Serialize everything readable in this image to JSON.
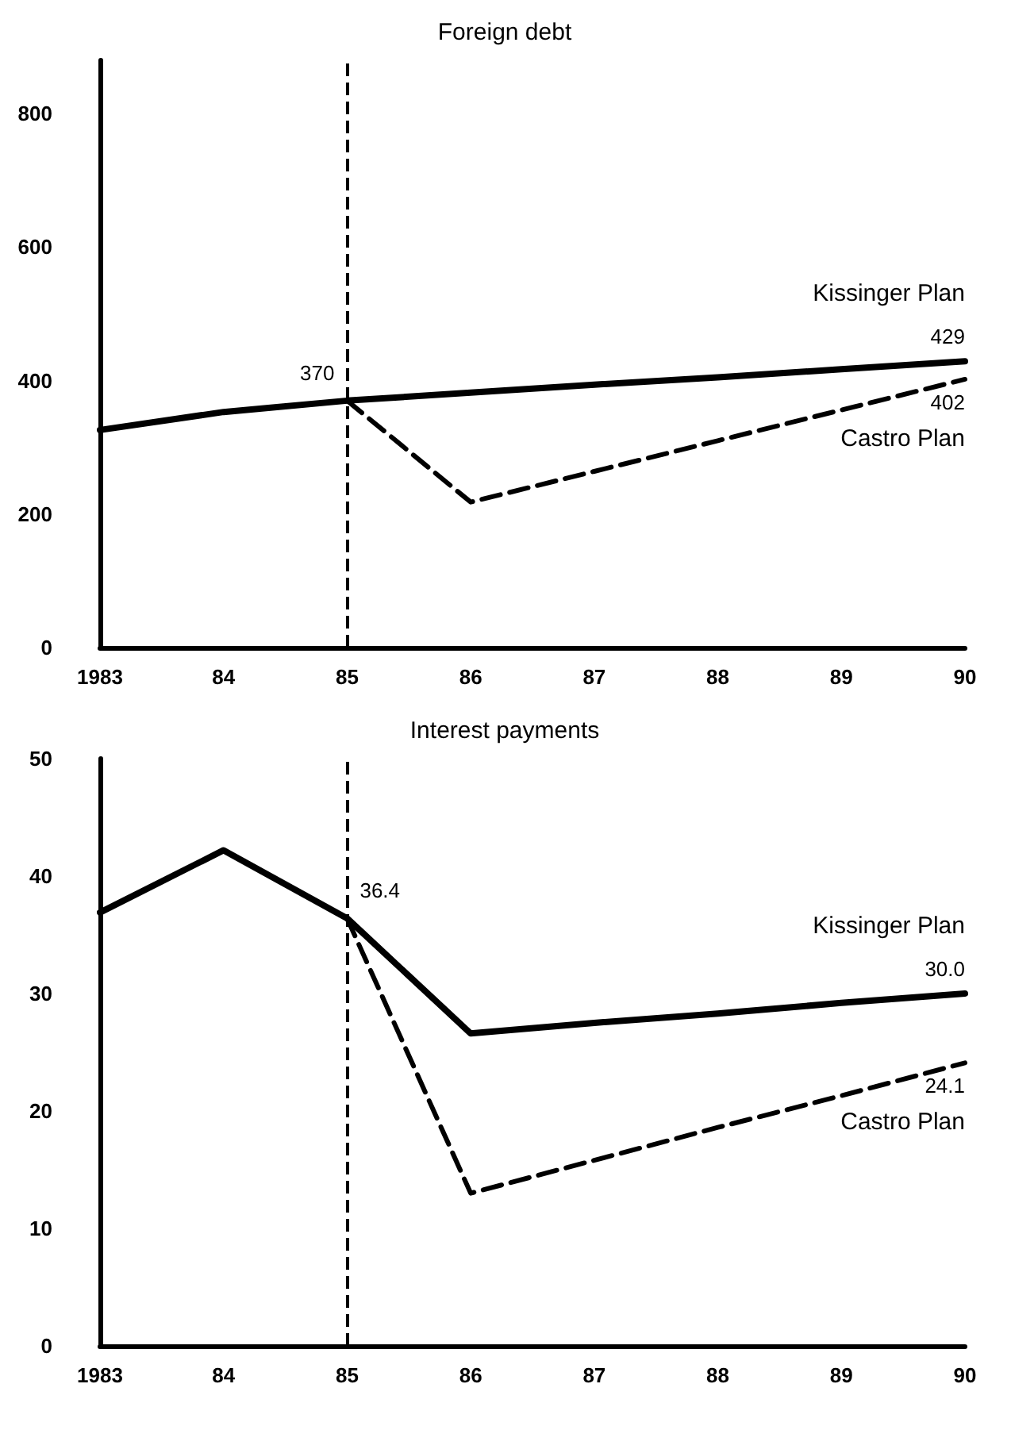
{
  "chart_data": [
    {
      "type": "line",
      "title": "Foreign debt",
      "categories": [
        "1983",
        "84",
        "85",
        "86",
        "87",
        "88",
        "89",
        "90"
      ],
      "ylim": [
        0,
        880
      ],
      "yticks": [
        0,
        200,
        400,
        600,
        800
      ],
      "grid": false,
      "legend": false,
      "marker": "none",
      "series": [
        {
          "name": "Kissinger Plan",
          "color": "#000000",
          "line_style": "solid",
          "values": [
            326,
            353,
            370,
            382,
            394,
            405,
            417,
            429
          ],
          "value_labels": [
            null,
            null,
            "370",
            null,
            null,
            null,
            null,
            "429"
          ]
        },
        {
          "name": "Castro Plan",
          "color": "#000000",
          "line_style": "dashed",
          "values": [
            null,
            null,
            370,
            218,
            264,
            310,
            356,
            402
          ],
          "value_labels": [
            null,
            null,
            null,
            null,
            null,
            null,
            null,
            "402"
          ]
        }
      ],
      "ref_lines": [
        {
          "axis": "x",
          "value": "85",
          "color": "#000000",
          "line_style": "dashed"
        }
      ]
    },
    {
      "type": "line",
      "title": "Interest payments",
      "categories": [
        "1983",
        "84",
        "85",
        "86",
        "87",
        "88",
        "89",
        "90"
      ],
      "ylim": [
        0,
        50
      ],
      "yticks": [
        0,
        10,
        20,
        30,
        40,
        50
      ],
      "grid": false,
      "legend": false,
      "marker": "none",
      "series": [
        {
          "name": "Kissinger Plan",
          "color": "#000000",
          "line_style": "solid",
          "values": [
            36.9,
            42.2,
            36.4,
            26.6,
            27.5,
            28.3,
            29.2,
            30.0
          ],
          "value_labels": [
            null,
            null,
            "36.4",
            null,
            null,
            null,
            null,
            "30.0"
          ]
        },
        {
          "name": "Castro Plan",
          "color": "#000000",
          "line_style": "dashed",
          "values": [
            null,
            null,
            36.4,
            13.0,
            15.8,
            18.6,
            21.3,
            24.1
          ],
          "value_labels": [
            null,
            null,
            null,
            null,
            null,
            null,
            null,
            "24.1"
          ]
        }
      ],
      "ref_lines": [
        {
          "axis": "x",
          "value": "85",
          "color": "#000000",
          "line_style": "dashed"
        }
      ]
    }
  ]
}
